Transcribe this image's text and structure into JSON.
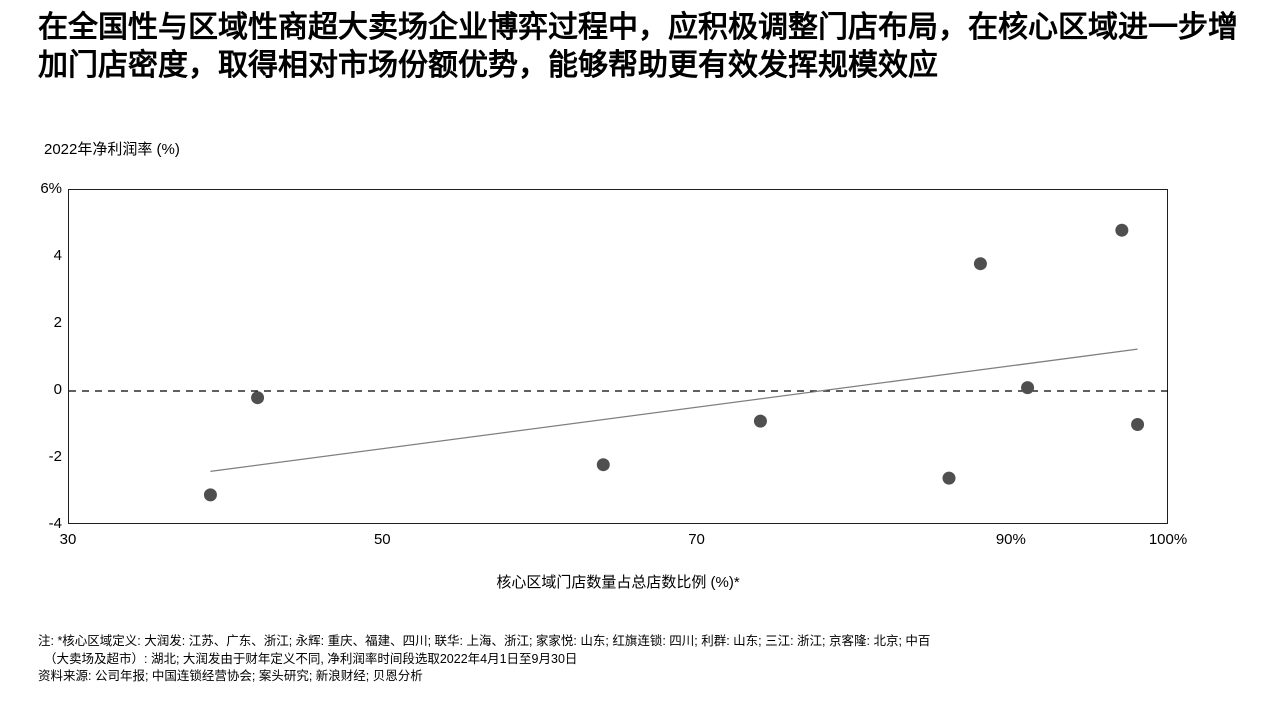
{
  "page": {
    "title": "在全国性与区域性商超大卖场企业博弈过程中，应积极调整门店布局，在核心区域进一步增加门店密度，取得相对市场份额优势，能够帮助更有效发挥规模效应"
  },
  "chart_data": {
    "type": "scatter",
    "y_axis_title": "2022年净利润率 (%)",
    "xlabel": "核心区域门店数量占总店数比例 (%)*",
    "xlim": [
      30,
      100
    ],
    "ylim": [
      -4,
      6
    ],
    "grid": "off",
    "x_ticks": [
      {
        "value": 30,
        "label": "30"
      },
      {
        "value": 50,
        "label": "50"
      },
      {
        "value": 70,
        "label": "70"
      },
      {
        "value": 90,
        "label": "90%"
      },
      {
        "value": 100,
        "label": "100%"
      }
    ],
    "y_ticks": [
      {
        "value": 6,
        "label": "6%"
      },
      {
        "value": 4,
        "label": "4"
      },
      {
        "value": 2,
        "label": "2"
      },
      {
        "value": 0,
        "label": "0"
      },
      {
        "value": -2,
        "label": "-2"
      },
      {
        "value": -4,
        "label": "-4"
      }
    ],
    "points": [
      {
        "x": 39,
        "y": -3.1
      },
      {
        "x": 42,
        "y": -0.2
      },
      {
        "x": 64,
        "y": -2.2
      },
      {
        "x": 74,
        "y": -0.9
      },
      {
        "x": 86,
        "y": -2.6
      },
      {
        "x": 88,
        "y": 3.8
      },
      {
        "x": 91,
        "y": 0.1
      },
      {
        "x": 97,
        "y": 4.8
      },
      {
        "x": 98,
        "y": -1.0
      }
    ],
    "trend_line": {
      "x1": 39,
      "y1": -2.4,
      "x2": 98,
      "y2": 1.25
    },
    "zero_line_y": 0,
    "colors": {
      "point": "#4f4f4f",
      "trend": "#7f7f7f",
      "zero_line": "#000000",
      "plot_border": "#1f1f1f"
    }
  },
  "footnotes": {
    "line1": "注: *核心区域定义: 大润发: 江苏、广东、浙江; 永辉: 重庆、福建、四川; 联华: 上海、浙江; 家家悦: 山东; 红旗连锁: 四川; 利群: 山东; 三江: 浙江; 京客隆: 北京; 中百",
    "line2": "（大卖场及超市）: 湖北; 大润发由于财年定义不同, 净利润率时间段选取2022年4月1日至9月30日",
    "line3": "资料来源: 公司年报; 中国连锁经营协会; 案头研究; 新浪财经; 贝恩分析"
  }
}
